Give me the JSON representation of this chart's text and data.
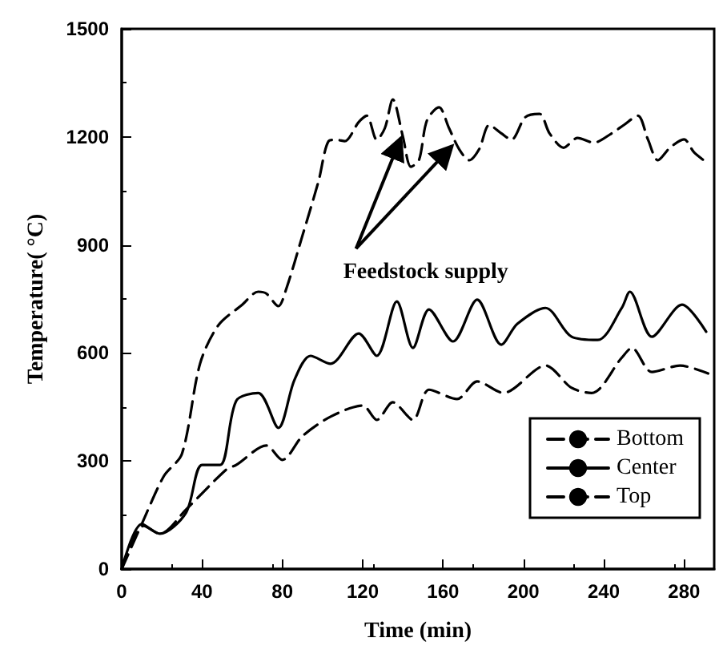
{
  "chart_data": {
    "type": "line",
    "xlabel": "Time (min)",
    "ylabel": "Temperature( °C)",
    "xlim": [
      0,
      295
    ],
    "xticks": [
      0,
      40,
      80,
      120,
      160,
      200,
      240,
      280
    ],
    "ylim": [
      0,
      1500
    ],
    "yticks": [
      0,
      300,
      600,
      900,
      1200,
      1500
    ],
    "grid": false,
    "legend": "bottom right",
    "marker": "none",
    "annotations": [
      {
        "text": "Feedstock supply",
        "x": 139,
        "y": 1197
      }
    ],
    "series": [
      {
        "name": "Bottom",
        "color": "#000000",
        "line_style": "dashed",
        "x": [
          0,
          10,
          21,
          30,
          39,
          48,
          60,
          68,
          72,
          78,
          82,
          90,
          98,
          103,
          107,
          111,
          118,
          122,
          127,
          131,
          135,
          140,
          144,
          148,
          152,
          158,
          163,
          168,
          173,
          178,
          183,
          189,
          194,
          201,
          208,
          213,
          220,
          227,
          235,
          244,
          250,
          257,
          262,
          267,
          273,
          280,
          285,
          292
        ],
        "values": [
          0,
          125,
          258,
          320,
          570,
          676,
          734,
          770,
          765,
          730,
          779,
          926,
          1077,
          1188,
          1192,
          1188,
          1241,
          1259,
          1192,
          1224,
          1304,
          1201,
          1117,
          1135,
          1246,
          1282,
          1224,
          1166,
          1135,
          1166,
          1233,
          1210,
          1192,
          1255,
          1264,
          1210,
          1170,
          1197,
          1184,
          1210,
          1233,
          1259,
          1193,
          1135,
          1170,
          1193,
          1157,
          1126
        ]
      },
      {
        "name": "Center",
        "color": "#000000",
        "line_style": "solid",
        "x": [
          0,
          10,
          19,
          32,
          40,
          49,
          57,
          68,
          78,
          86,
          94,
          104,
          118,
          127,
          137,
          145,
          153,
          165,
          177,
          189,
          197,
          211,
          224,
          237,
          249,
          253,
          264,
          279,
          291
        ],
        "values": [
          0,
          125,
          98,
          156,
          289,
          289,
          467,
          489,
          392,
          525,
          592,
          570,
          654,
          592,
          743,
          614,
          721,
          632,
          748,
          623,
          681,
          725,
          645,
          636,
          725,
          770,
          645,
          734,
          659
        ]
      },
      {
        "name": "Top",
        "color": "#000000",
        "line_style": "dashed",
        "x": [
          0,
          11,
          19,
          32,
          52,
          57,
          72,
          80,
          90,
          104,
          120,
          127,
          135,
          145,
          153,
          167,
          177,
          190,
          211,
          224,
          234,
          249,
          254,
          264,
          278,
          292
        ],
        "values": [
          0,
          120,
          98,
          165,
          276,
          289,
          343,
          303,
          369,
          423,
          454,
          414,
          463,
          414,
          498,
          472,
          521,
          489,
          565,
          503,
          489,
          587,
          614,
          547,
          565,
          543
        ]
      }
    ]
  }
}
